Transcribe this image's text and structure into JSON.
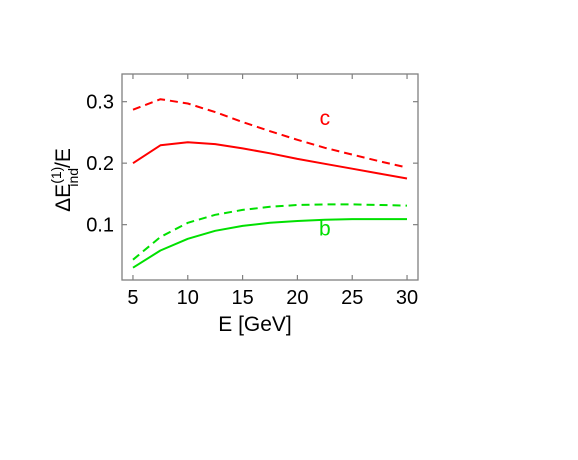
{
  "chart_data": {
    "type": "line",
    "title": "",
    "xlabel": "E [GeV]",
    "ylabel": {
      "base": "ΔE",
      "superscript": "(1)",
      "subscript": "ind",
      "suffix": "/E"
    },
    "xlim": [
      4,
      31
    ],
    "ylim": [
      0.01,
      0.345
    ],
    "xticks": [
      5,
      10,
      15,
      20,
      25,
      30
    ],
    "yticks": [
      0.1,
      0.2,
      0.3
    ],
    "ytick_labels": [
      "0.1",
      "0.2",
      "0.3"
    ],
    "grid": false,
    "colors": {
      "c": "#ff0000",
      "b": "#00e000",
      "frame": "#808080"
    },
    "series": [
      {
        "group": "c",
        "style": "solid",
        "color": "#ff0000",
        "x": [
          5,
          7.5,
          10,
          12.5,
          15,
          17.5,
          20,
          22.5,
          25,
          27.5,
          30
        ],
        "y": [
          0.2,
          0.229,
          0.234,
          0.231,
          0.224,
          0.216,
          0.207,
          0.199,
          0.191,
          0.183,
          0.175
        ]
      },
      {
        "group": "c",
        "style": "dashed",
        "color": "#ff0000",
        "x": [
          5,
          7.5,
          10,
          12.5,
          15,
          17.5,
          20,
          22.5,
          25,
          27.5,
          30
        ],
        "y": [
          0.287,
          0.304,
          0.297,
          0.283,
          0.267,
          0.252,
          0.238,
          0.225,
          0.214,
          0.203,
          0.193
        ]
      },
      {
        "group": "b",
        "style": "solid",
        "color": "#00e000",
        "x": [
          5,
          7.5,
          10,
          12.5,
          15,
          17.5,
          20,
          22.5,
          25,
          27.5,
          30
        ],
        "y": [
          0.03,
          0.058,
          0.077,
          0.09,
          0.098,
          0.103,
          0.106,
          0.108,
          0.109,
          0.109,
          0.109
        ]
      },
      {
        "group": "b",
        "style": "dashed",
        "color": "#00e000",
        "x": [
          5,
          7.5,
          10,
          12.5,
          15,
          17.5,
          20,
          22.5,
          25,
          27.5,
          30
        ],
        "y": [
          0.043,
          0.08,
          0.103,
          0.116,
          0.124,
          0.129,
          0.132,
          0.133,
          0.133,
          0.132,
          0.131
        ]
      }
    ],
    "annotations": [
      {
        "text": "c",
        "x": 22.5,
        "y": 0.262,
        "color": "#ff0000"
      },
      {
        "text": "b",
        "x": 22.5,
        "y": 0.082,
        "color": "#00e000"
      }
    ]
  }
}
